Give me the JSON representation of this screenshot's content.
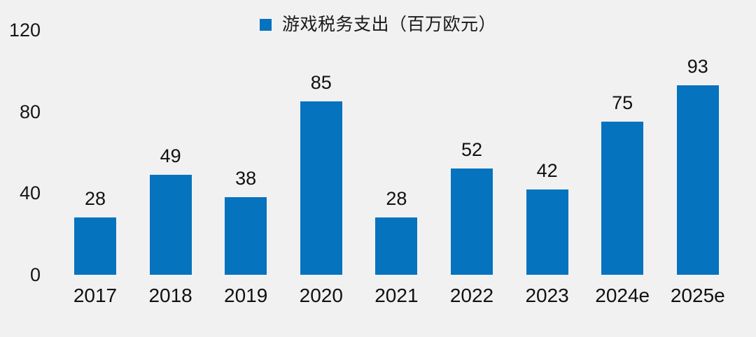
{
  "page": {
    "background": "#f1f1f2",
    "text_color": "#161616"
  },
  "legend": {
    "marker_icon": "legend-square",
    "marker_color": "#0673be",
    "label": "游戏税务支出（百万欧元）"
  },
  "chart_data": {
    "type": "bar",
    "title": "",
    "categories": [
      "2017",
      "2018",
      "2019",
      "2020",
      "2021",
      "2022",
      "2023",
      "2024e",
      "2025e"
    ],
    "values": [
      28,
      49,
      38,
      85,
      28,
      52,
      42,
      75,
      93
    ],
    "data_labels": [
      "28",
      "49",
      "38",
      "85",
      "28",
      "52",
      "42",
      "75",
      "93"
    ],
    "series_name": "游戏税务支出（百万欧元）",
    "bar_color": "#0673be",
    "xlabel": "",
    "ylabel": "",
    "ylim": [
      0,
      120
    ],
    "yticks": [
      0,
      40,
      80,
      120
    ],
    "ytick_labels": [
      "0",
      "40",
      "80",
      "120"
    ],
    "grid": false,
    "legend_position": "top-center"
  }
}
